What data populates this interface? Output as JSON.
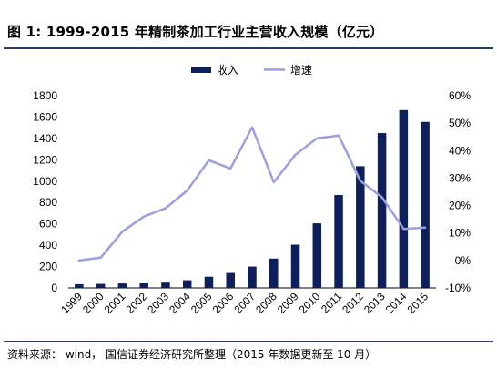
{
  "header": {
    "title": "图 1:  1999-2015 年精制茶加工行业主营收入规模（亿元）"
  },
  "footer": {
    "source": "资料来源： wind， 国信证券经济研究所整理（2015 年数据更新至 10 月）"
  },
  "chart_data": {
    "type": "bar",
    "title": "图 1:  1999-2015 年精制茶加工行业主营收入规模（亿元）",
    "categories": [
      "1999",
      "2000",
      "2001",
      "2002",
      "2003",
      "2004",
      "2005",
      "2006",
      "2007",
      "2008",
      "2009",
      "2010",
      "2011",
      "2012",
      "2013",
      "2014",
      "2015"
    ],
    "series": [
      {
        "name": "收入",
        "type": "bar",
        "axis": "left",
        "color": "#0d1f5c",
        "values": [
          35,
          38,
          42,
          48,
          58,
          72,
          105,
          140,
          200,
          275,
          405,
          605,
          870,
          1140,
          1450,
          1665,
          1555
        ]
      },
      {
        "name": "增速",
        "type": "line",
        "axis": "right",
        "color": "#9b9fe0",
        "values": [
          0.0,
          1.0,
          10.5,
          16.0,
          19.0,
          25.5,
          36.5,
          33.5,
          48.5,
          28.5,
          38.5,
          44.5,
          45.5,
          29.0,
          23.0,
          11.5,
          12.0
        ]
      }
    ],
    "y_left": {
      "lim": [
        0,
        1800
      ],
      "ticks": [
        "0",
        "200",
        "400",
        "600",
        "800",
        "1000",
        "1200",
        "1400",
        "1600",
        "1800"
      ]
    },
    "y_right": {
      "lim": [
        -10,
        60
      ],
      "ticks": [
        "-10%",
        "0%",
        "10%",
        "20%",
        "30%",
        "40%",
        "50%",
        "60%"
      ]
    },
    "grid": false,
    "legend": {
      "placement": "top-center"
    }
  }
}
